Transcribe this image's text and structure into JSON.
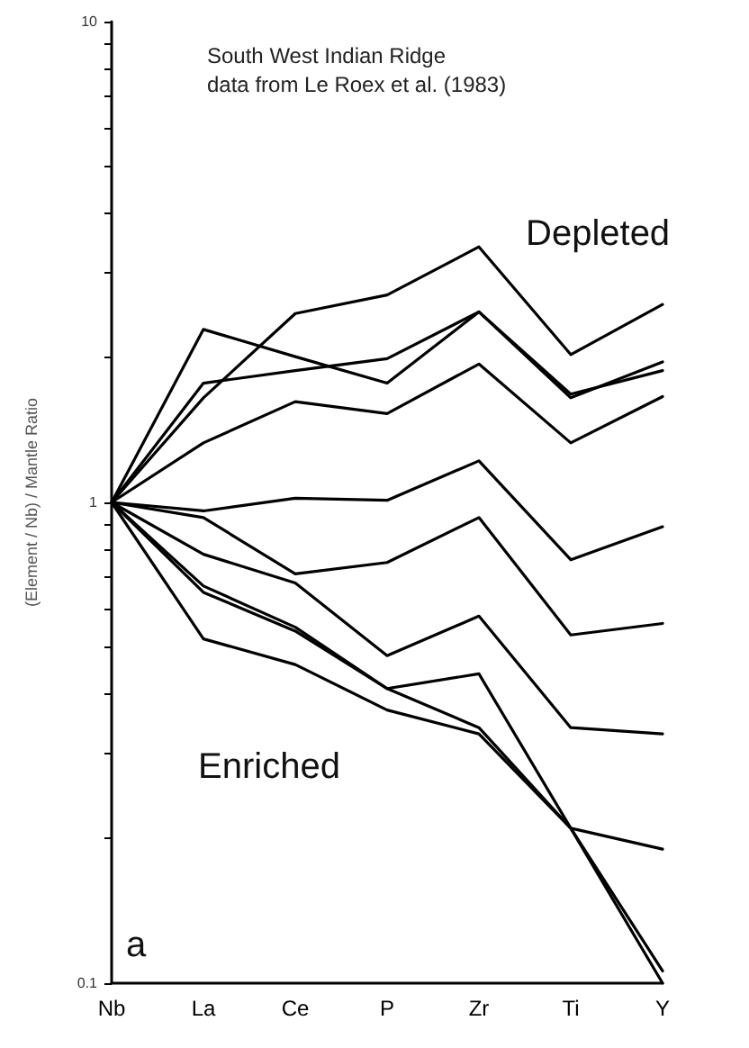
{
  "chart_data": {
    "type": "line",
    "title": "South West Indian Ridge",
    "subtitle": "data from Le Roex et al. (1983)",
    "ylabel": "(Element / Nb) / Mantle Ratio",
    "annotations": [
      "Depleted",
      "Enriched",
      "a"
    ],
    "categories": [
      "Nb",
      "La",
      "Ce",
      "P",
      "Zr",
      "Ti",
      "Y"
    ],
    "series": [
      {
        "color": "#000000",
        "values": [
          1,
          2.29,
          2.01,
          1.77,
          2.49,
          1.68,
          1.88
        ]
      },
      {
        "color": "#000000",
        "values": [
          1,
          1.65,
          2.47,
          2.7,
          3.4,
          2.03,
          2.58
        ]
      },
      {
        "color": "#000000",
        "values": [
          1,
          1.77,
          1.88,
          1.99,
          2.49,
          1.65,
          1.96
        ]
      },
      {
        "color": "#000000",
        "values": [
          1,
          1.33,
          1.62,
          1.53,
          1.94,
          1.33,
          1.66
        ]
      },
      {
        "color": "#000000",
        "values": [
          1,
          0.96,
          1.02,
          1.01,
          1.22,
          0.76,
          0.89
        ]
      },
      {
        "color": "#000000",
        "values": [
          1,
          0.93,
          0.71,
          0.75,
          0.93,
          0.53,
          0.56
        ]
      },
      {
        "color": "#000000",
        "values": [
          1,
          0.78,
          0.68,
          0.48,
          0.58,
          0.34,
          0.33
        ]
      },
      {
        "color": "#000000",
        "values": [
          1,
          0.67,
          0.55,
          0.41,
          0.44,
          0.21,
          0.19
        ]
      },
      {
        "color": "#000000",
        "values": [
          1,
          0.65,
          0.54,
          0.41,
          0.34,
          0.21,
          0.106
        ]
      },
      {
        "color": "#000000",
        "values": [
          1,
          0.52,
          0.46,
          0.37,
          0.33,
          0.21,
          0.1
        ]
      }
    ],
    "ylim": [
      0.1,
      10
    ],
    "yticks": [
      0.1,
      {
        "value": 0.2,
        "label": null
      },
      {
        "value": 0.3,
        "label": null
      },
      {
        "value": 0.4,
        "label": null
      },
      {
        "value": 0.5,
        "label": null
      },
      {
        "value": 0.6,
        "label": null
      },
      {
        "value": 0.7,
        "label": null
      },
      {
        "value": 0.8,
        "label": null
      },
      {
        "value": 0.9,
        "label": null
      },
      1,
      {
        "value": 2,
        "label": null
      },
      {
        "value": 3,
        "label": null
      },
      {
        "value": 4,
        "label": null
      },
      {
        "value": 5,
        "label": null
      },
      {
        "value": 6,
        "label": null
      },
      {
        "value": 7,
        "label": null
      },
      {
        "value": 8,
        "label": null
      },
      {
        "value": 9,
        "label": null
      },
      10
    ],
    "log": "y",
    "marker": "none",
    "line_style": "solid"
  }
}
